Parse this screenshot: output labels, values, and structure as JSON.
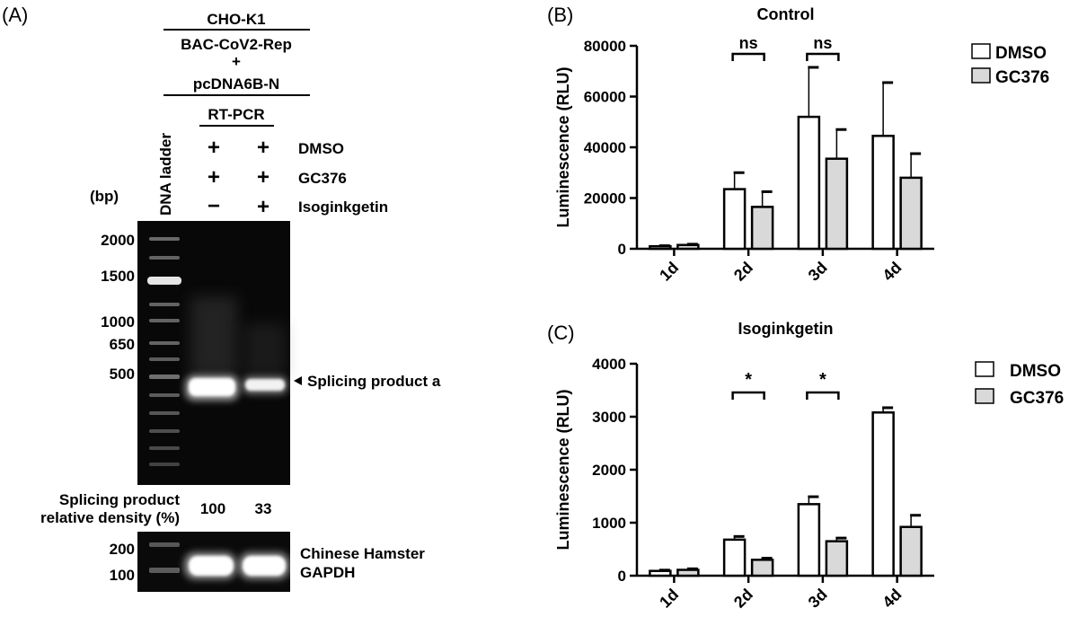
{
  "panel_a": {
    "label": "(A)",
    "cell_line": "CHO-K1",
    "construct_line1": "BAC-CoV2-Rep",
    "construct_plus": "+",
    "construct_line2": "pcDNA6B-N",
    "method": "RT-PCR",
    "ladder_label": "DNA ladder",
    "bp_label": "(bp)",
    "treatments": [
      {
        "name": "DMSO",
        "lane1": "+",
        "lane2": "+"
      },
      {
        "name": "GC376",
        "lane1": "+",
        "lane2": "+"
      },
      {
        "name": "Isoginkgetin",
        "lane1": "−",
        "lane2": "+"
      }
    ],
    "markers": [
      "2000",
      "1500",
      "1000",
      "650",
      "500"
    ],
    "band_label": "Splicing product a",
    "density_label_line1": "Splicing product",
    "density_label_line2": "relative density (%)",
    "density_values": [
      "100",
      "33"
    ],
    "gapdh_markers": [
      "200",
      "100"
    ],
    "gapdh_label_line1": "Chinese Hamster",
    "gapdh_label_line2": "GAPDH"
  },
  "chart_data": [
    {
      "panel": "(B)",
      "type": "bar",
      "title": "Control",
      "ylabel": "Luminescence (RLU)",
      "xlabel": "",
      "categories": [
        "1d",
        "2d",
        "3d",
        "4d"
      ],
      "ylim": [
        0,
        80000
      ],
      "yticks": [
        "0",
        "20000",
        "40000",
        "60000",
        "80000"
      ],
      "legend_position": "top-right",
      "series": [
        {
          "name": "DMSO",
          "color": "#ffffff",
          "values": [
            1000,
            23500,
            52000,
            44500
          ],
          "errors": [
            200,
            6500,
            19500,
            21000
          ]
        },
        {
          "name": "GC376",
          "color": "#d9d9d9",
          "values": [
            1500,
            16500,
            35500,
            28000
          ],
          "errors": [
            300,
            6000,
            11500,
            9500
          ]
        }
      ],
      "annotations": [
        {
          "category": "2d",
          "text": "ns"
        },
        {
          "category": "3d",
          "text": "ns"
        }
      ]
    },
    {
      "panel": "(C)",
      "type": "bar",
      "title": "Isoginkgetin",
      "ylabel": "Luminescence (RLU)",
      "xlabel": "",
      "categories": [
        "1d",
        "2d",
        "3d",
        "4d"
      ],
      "ylim": [
        0,
        4000
      ],
      "yticks": [
        "0",
        "1000",
        "2000",
        "3000",
        "4000"
      ],
      "legend_position": "top-right",
      "series": [
        {
          "name": "DMSO",
          "color": "#ffffff",
          "values": [
            90,
            680,
            1350,
            3080
          ],
          "errors": [
            15,
            60,
            140,
            90
          ]
        },
        {
          "name": "GC376",
          "color": "#d9d9d9",
          "values": [
            110,
            300,
            650,
            920
          ],
          "errors": [
            20,
            30,
            60,
            220
          ]
        }
      ],
      "annotations": [
        {
          "category": "2d",
          "text": "*"
        },
        {
          "category": "3d",
          "text": "*"
        }
      ]
    }
  ]
}
